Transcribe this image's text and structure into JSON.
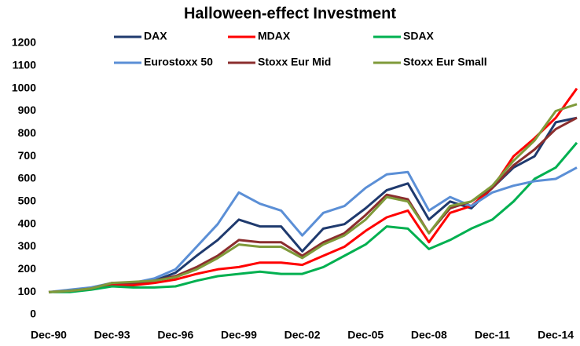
{
  "chart_data": {
    "type": "line",
    "title": "Halloween-effect Investment",
    "categories": [
      "Dec-90",
      null,
      null,
      "Dec-93",
      null,
      null,
      "Dec-96",
      null,
      null,
      "Dec-99",
      null,
      null,
      "Dec-02",
      null,
      null,
      "Dec-05",
      null,
      null,
      "Dec-08",
      null,
      null,
      "Dec-11",
      null,
      null,
      "Dec-14",
      null
    ],
    "series": [
      {
        "name": "DAX",
        "color": "#1f3a6e",
        "values": [
          100,
          105,
          115,
          135,
          135,
          150,
          185,
          260,
          330,
          420,
          390,
          390,
          280,
          380,
          400,
          470,
          550,
          580,
          420,
          500,
          470,
          560,
          650,
          700,
          850,
          870
        ]
      },
      {
        "name": "MDAX",
        "color": "#ff0000",
        "values": [
          100,
          105,
          115,
          130,
          130,
          140,
          155,
          180,
          200,
          210,
          230,
          230,
          220,
          260,
          300,
          370,
          430,
          460,
          320,
          450,
          480,
          560,
          700,
          780,
          870,
          1000
        ]
      },
      {
        "name": "SDAX",
        "color": "#00b050",
        "values": [
          100,
          100,
          110,
          125,
          120,
          120,
          125,
          150,
          170,
          180,
          190,
          180,
          180,
          210,
          260,
          310,
          390,
          380,
          290,
          330,
          380,
          420,
          500,
          600,
          650,
          760
        ]
      },
      {
        "name": "Eurostoxx 50",
        "color": "#5b8fd6",
        "values": [
          100,
          110,
          120,
          140,
          140,
          160,
          200,
          300,
          400,
          540,
          490,
          460,
          350,
          450,
          480,
          560,
          620,
          630,
          460,
          520,
          480,
          540,
          570,
          590,
          600,
          650
        ]
      },
      {
        "name": "Stoxx Eur Mid",
        "color": "#8b2e2e",
        "values": [
          100,
          105,
          115,
          140,
          140,
          150,
          170,
          210,
          260,
          330,
          320,
          320,
          260,
          320,
          360,
          440,
          530,
          510,
          360,
          470,
          500,
          560,
          660,
          730,
          820,
          870
        ]
      },
      {
        "name": "Stoxx Eur Small",
        "color": "#7f9a3a",
        "values": [
          100,
          105,
          115,
          140,
          145,
          150,
          165,
          200,
          250,
          310,
          300,
          300,
          250,
          310,
          350,
          420,
          520,
          500,
          360,
          480,
          500,
          570,
          680,
          770,
          900,
          930
        ]
      }
    ],
    "ylim": [
      0,
      1200
    ],
    "yticks": [
      0,
      100,
      200,
      300,
      400,
      500,
      600,
      700,
      800,
      900,
      1000,
      1100,
      1200
    ],
    "grid": false
  }
}
